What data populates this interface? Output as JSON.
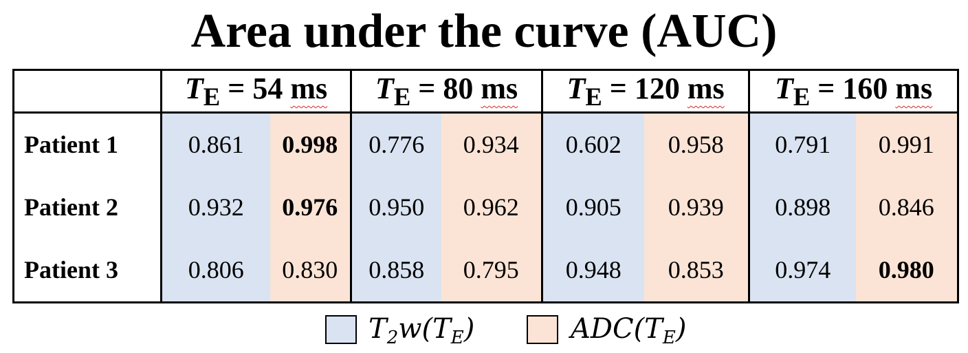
{
  "title": "Area under the curve (AUC)",
  "columns": [
    {
      "prefix": "T",
      "sub": "E",
      "eq": " = 54 ",
      "unit": "ms"
    },
    {
      "prefix": "T",
      "sub": "E",
      "eq": " = 80 ",
      "unit": "ms"
    },
    {
      "prefix": "T",
      "sub": "E",
      "eq": " = 120 ",
      "unit": "ms"
    },
    {
      "prefix": "T",
      "sub": "E",
      "eq": " = 160 ",
      "unit": "ms"
    }
  ],
  "rows": [
    {
      "label": "Patient 1",
      "values": [
        "0.861",
        "0.998",
        "0.776",
        "0.934",
        "0.602",
        "0.958",
        "0.791",
        "0.991"
      ],
      "bold": [
        false,
        true,
        false,
        false,
        false,
        false,
        false,
        false
      ]
    },
    {
      "label": "Patient 2",
      "values": [
        "0.932",
        "0.976",
        "0.950",
        "0.962",
        "0.905",
        "0.939",
        "0.898",
        "0.846"
      ],
      "bold": [
        false,
        true,
        false,
        false,
        false,
        false,
        false,
        false
      ]
    },
    {
      "label": "Patient 3",
      "values": [
        "0.806",
        "0.830",
        "0.858",
        "0.795",
        "0.948",
        "0.853",
        "0.974",
        "0.980"
      ],
      "bold": [
        false,
        false,
        false,
        false,
        false,
        false,
        false,
        true
      ]
    }
  ],
  "legend": {
    "t2w": {
      "text_pre": "T",
      "sub1": "2",
      "text_mid": "w(T",
      "sub2": "E",
      "text_post": ")",
      "color": "#dae3f1"
    },
    "adc": {
      "text_pre": "ADC(T",
      "sub1": "E",
      "text_post": ")",
      "color": "#fbe4d6"
    }
  },
  "colors": {
    "t2w_fill": "#dae3f1",
    "adc_fill": "#fbe4d6",
    "border": "#000000",
    "spellcheck_underline": "#dd2222"
  }
}
